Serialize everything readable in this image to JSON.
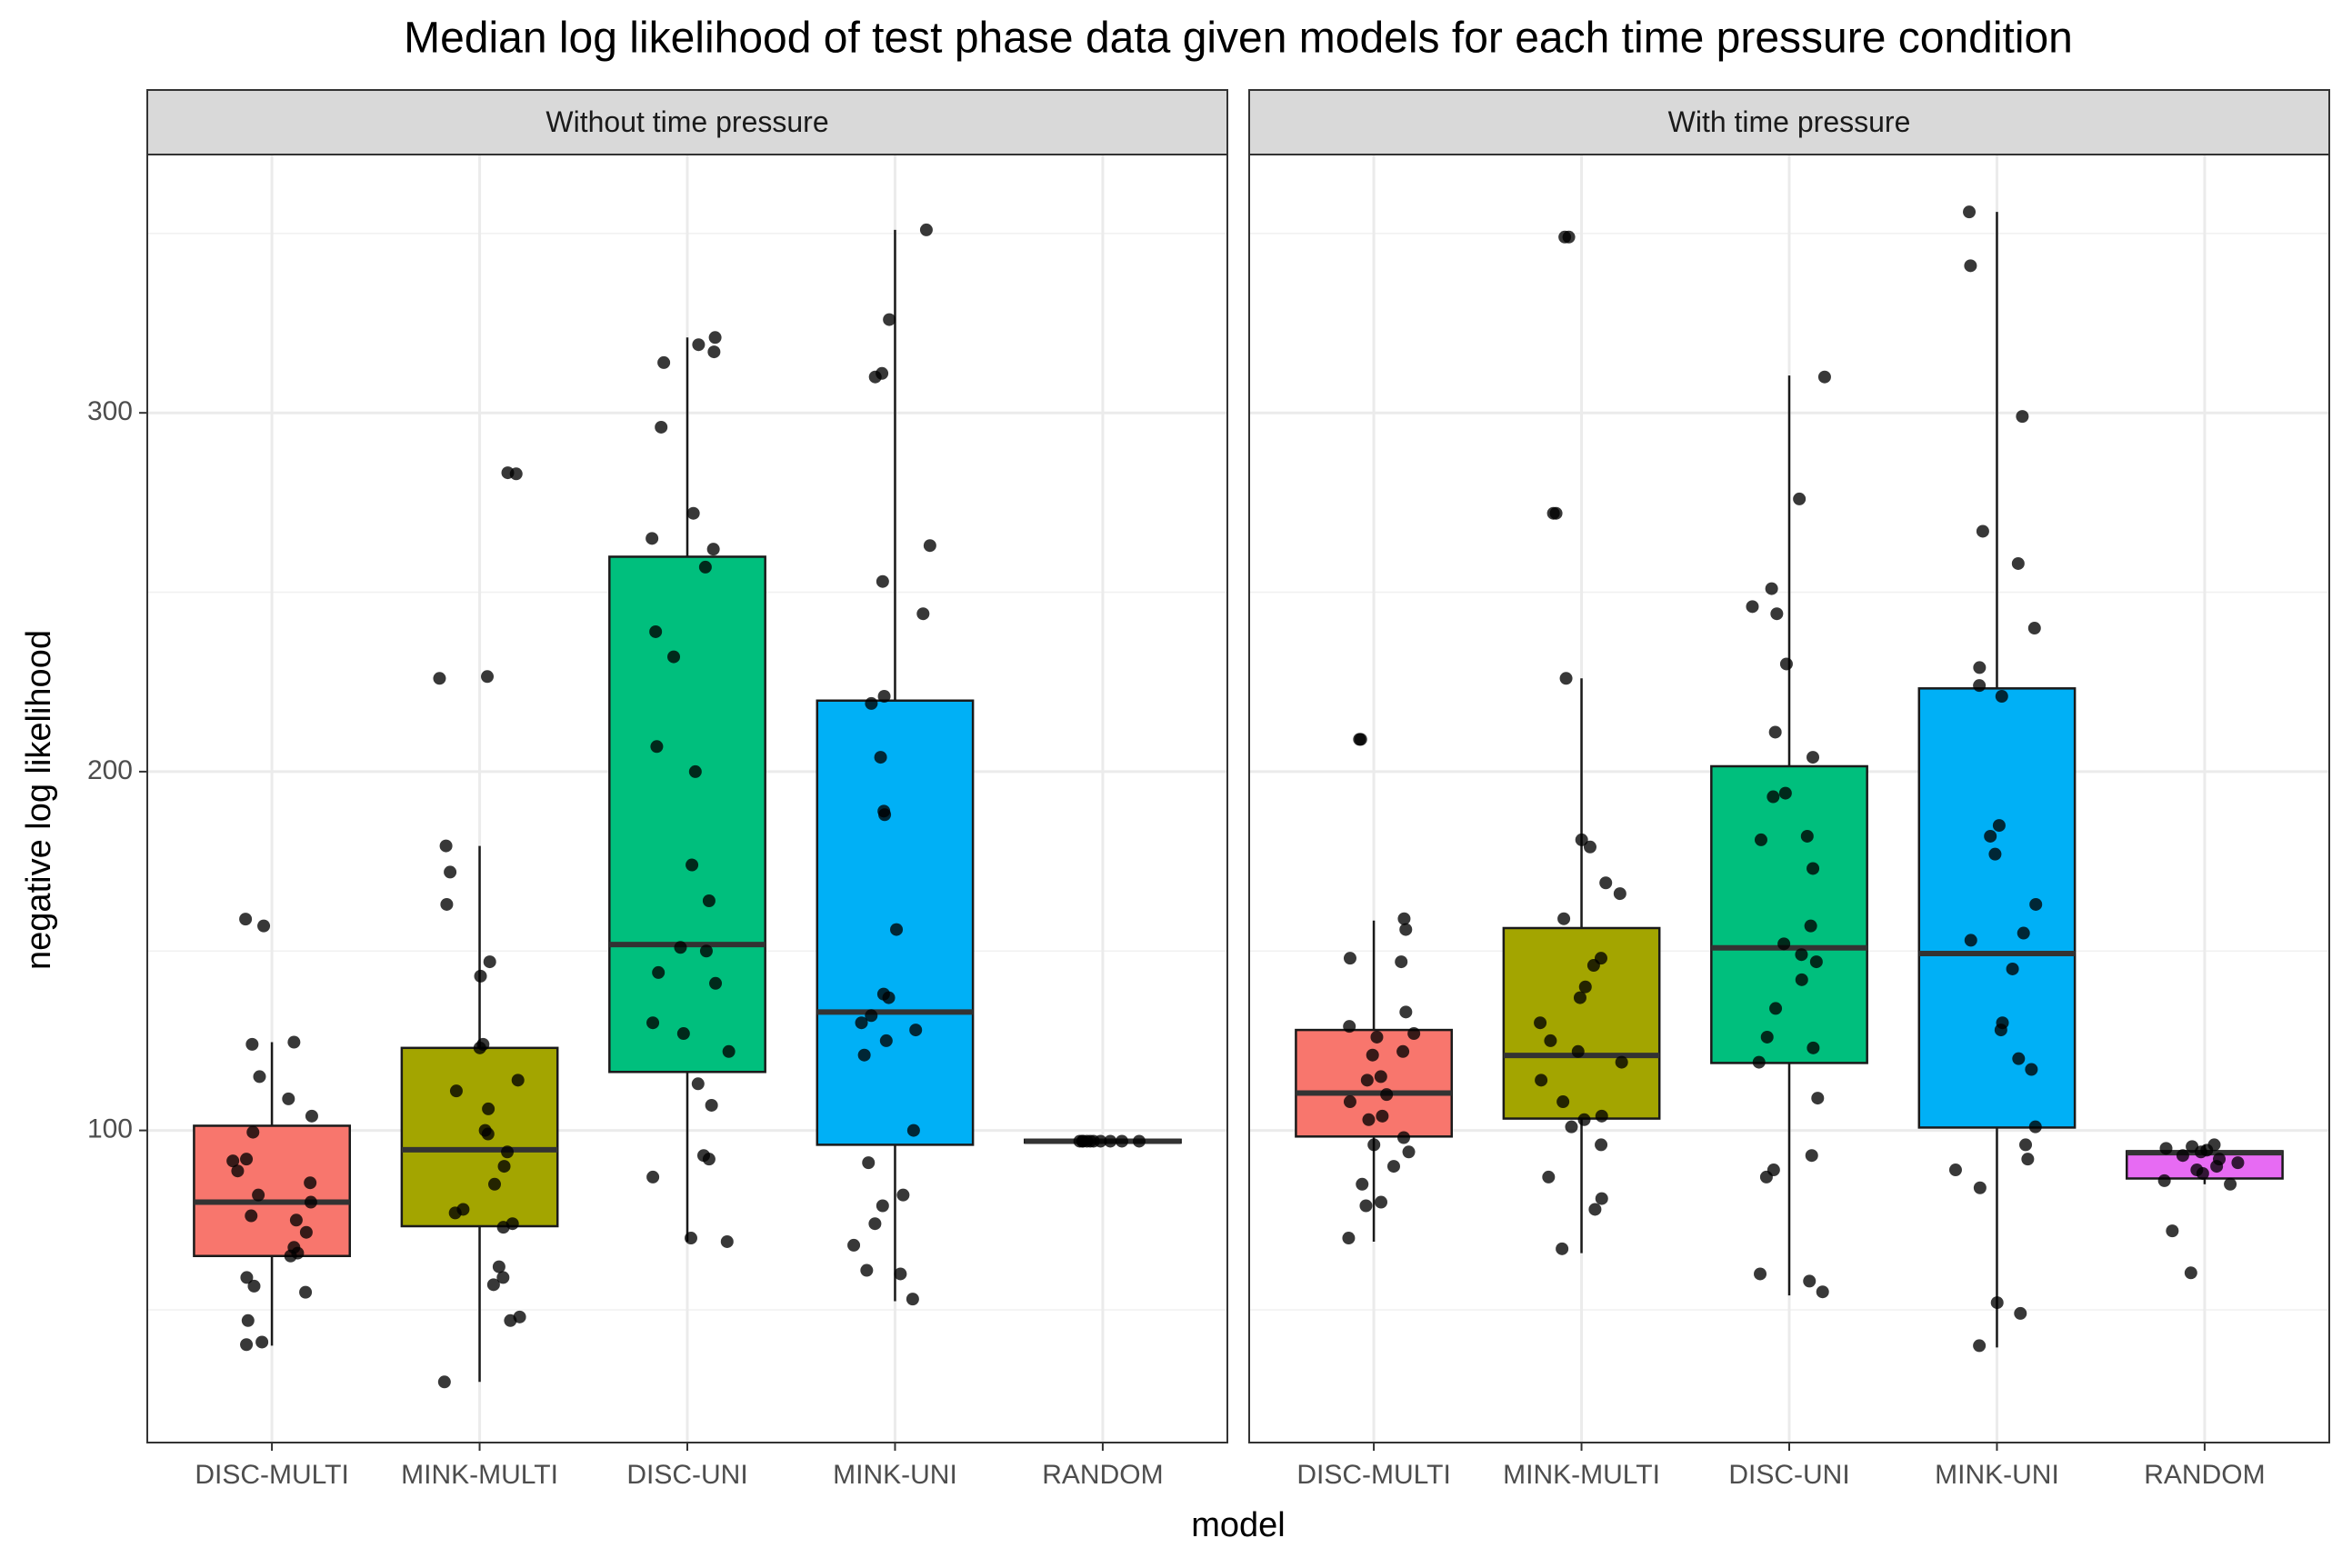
{
  "chart_data": [
    {
      "type": "box",
      "title": "Median log likelihood of test phase data given models for each time pressure condition",
      "xlabel": "model",
      "ylabel": "negative log likelihood",
      "subtitle": "Without time pressure",
      "categories": [
        "DISC-MULTI",
        "MINK-MULTI",
        "DISC-UNI",
        "MINK-UNI",
        "RANDOM"
      ],
      "colors": [
        "#F8766D",
        "#A3A500",
        "#00BF7D",
        "#00B0F6",
        "#E76BF3"
      ],
      "ylim": [
        13,
        372
      ],
      "yticks": [
        100,
        200,
        300
      ],
      "minor_yticks": [
        50,
        150,
        250,
        350
      ],
      "grid": true,
      "boxes": [
        {
          "q1": 65,
          "median": 80,
          "q3": 101.3,
          "whislo": 40,
          "whishi": 124.6,
          "points": [
            158.9,
            157,
            124.6,
            124,
            115,
            108.8,
            104,
            99.5,
            92,
            91.5,
            88.7,
            85.4,
            82,
            80,
            76.2,
            75,
            71.6,
            67.4,
            65.8,
            65,
            59,
            56.6,
            54.9,
            47,
            40.3,
            41
          ]
        },
        {
          "q1": 73.3,
          "median": 94.6,
          "q3": 123,
          "whislo": 29.9,
          "whishi": 179.3,
          "points": [
            283.3,
            283,
            226.5,
            226,
            179.3,
            172,
            163,
            147,
            143,
            124,
            123,
            114,
            111,
            106,
            100,
            99,
            94,
            90,
            85,
            78,
            77,
            74,
            73,
            62,
            59,
            57,
            48,
            47,
            29.9
          ]
        },
        {
          "q1": 116.3,
          "median": 151.8,
          "q3": 259.9,
          "whislo": 69,
          "whishi": 321,
          "points": [
            321,
            319,
            317,
            314,
            296,
            272,
            265,
            262,
            257,
            239,
            232,
            207,
            200,
            174,
            164,
            151,
            150,
            144,
            141,
            130,
            127,
            122,
            113,
            107,
            93,
            92,
            87,
            70,
            69
          ]
        },
        {
          "q1": 96,
          "median": 133,
          "q3": 219.8,
          "whislo": 52.4,
          "whishi": 351,
          "points": [
            351,
            326,
            311,
            310,
            263,
            253,
            244,
            221,
            219,
            204,
            189,
            188,
            156,
            138,
            137,
            132,
            130,
            128,
            125,
            121,
            100,
            91,
            82,
            79,
            74,
            68,
            61,
            60,
            53
          ]
        },
        {
          "q1": 96.6,
          "median": 97,
          "q3": 97.4,
          "whislo": 96.6,
          "whishi": 97.4,
          "points": [
            97,
            97,
            97,
            97,
            97,
            97,
            97,
            97,
            97,
            97
          ]
        }
      ]
    },
    {
      "type": "box",
      "subtitle": "With time pressure",
      "categories": [
        "DISC-MULTI",
        "MINK-MULTI",
        "DISC-UNI",
        "MINK-UNI",
        "RANDOM"
      ],
      "colors": [
        "#F8766D",
        "#A3A500",
        "#00BF7D",
        "#00B0F6",
        "#E76BF3"
      ],
      "ylim": [
        13,
        372
      ],
      "yticks": [
        100,
        200,
        300
      ],
      "minor_yticks": [
        50,
        150,
        250,
        350
      ],
      "grid": true,
      "boxes": [
        {
          "q1": 98.3,
          "median": 110.4,
          "q3": 128,
          "whislo": 69,
          "whishi": 158.5,
          "points": [
            209,
            209,
            159,
            156,
            148,
            147,
            133,
            129,
            127,
            126,
            122,
            121,
            115,
            114,
            110,
            108,
            104,
            103,
            98,
            96,
            94,
            90,
            85,
            80,
            79,
            70
          ]
        },
        {
          "q1": 103.3,
          "median": 120.9,
          "q3": 156.4,
          "whislo": 65.8,
          "whishi": 226,
          "points": [
            349,
            349,
            272,
            272,
            226,
            181,
            179,
            169,
            166,
            159,
            148,
            146,
            140,
            137,
            130,
            125,
            122,
            119,
            114,
            108,
            104,
            103,
            101,
            96,
            87,
            81,
            78,
            67
          ]
        },
        {
          "q1": 118.8,
          "median": 150.9,
          "q3": 201.5,
          "whislo": 54,
          "whishi": 310.4,
          "points": [
            310,
            276,
            251,
            246,
            244,
            230,
            211,
            204,
            194,
            193,
            182,
            181,
            173,
            157,
            152,
            149,
            147,
            142,
            134,
            126,
            123,
            119,
            109,
            93,
            89,
            87,
            60,
            58,
            55
          ]
        },
        {
          "q1": 100.8,
          "median": 149.3,
          "q3": 223.2,
          "whislo": 39.5,
          "whishi": 356,
          "points": [
            356,
            341,
            299,
            267,
            258,
            240,
            229,
            224,
            221,
            185,
            182,
            177,
            163,
            155,
            153,
            145,
            130,
            128,
            120,
            117,
            101,
            96,
            92,
            89,
            84,
            52,
            49,
            40
          ]
        },
        {
          "q1": 86.6,
          "median": 93.8,
          "q3": 94.2,
          "whislo": 85,
          "whishi": 96,
          "points": [
            96,
            95.5,
            95,
            94.5,
            94,
            93,
            92,
            91,
            90,
            89,
            88,
            86,
            85,
            72,
            60.3
          ]
        }
      ]
    }
  ]
}
